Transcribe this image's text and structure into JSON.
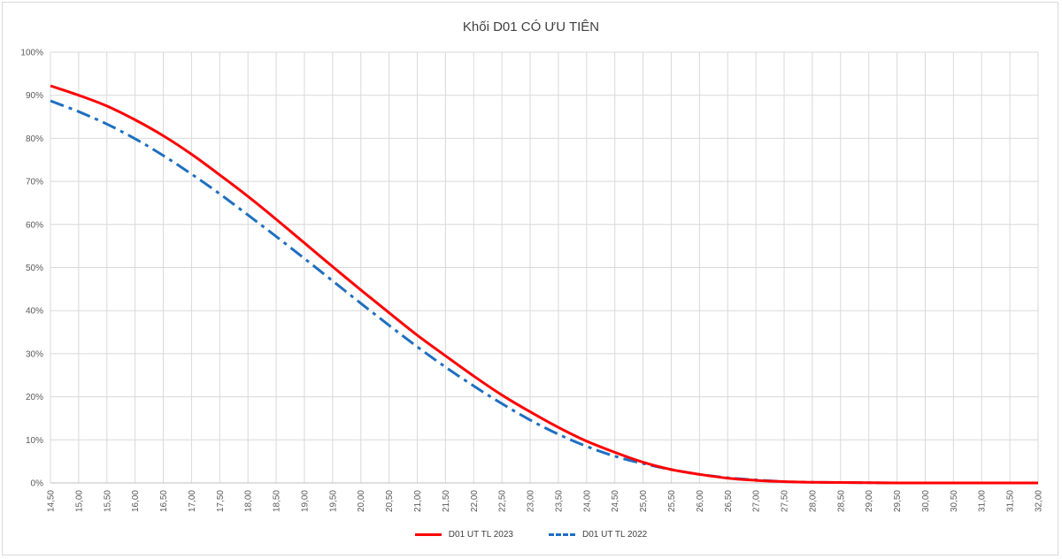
{
  "chart_data": {
    "type": "line",
    "title": "Khối D01 CÓ ƯU TIÊN",
    "xlabel": "",
    "ylabel": "",
    "x": [
      "14,50",
      "15,00",
      "15,50",
      "16,00",
      "16,50",
      "17,00",
      "17,50",
      "18,00",
      "18,50",
      "19,00",
      "19,50",
      "20,00",
      "20,50",
      "21,00",
      "21,50",
      "22,00",
      "22,50",
      "23,00",
      "23,50",
      "24,00",
      "24,50",
      "25,00",
      "25,50",
      "26,00",
      "26,50",
      "27,00",
      "27,50",
      "28,00",
      "28,50",
      "29,00",
      "29,50",
      "30,00",
      "30,50",
      "31,00",
      "31,50",
      "32,00"
    ],
    "ylim": [
      0,
      100
    ],
    "yticks": [
      "0%",
      "10%",
      "20%",
      "30%",
      "40%",
      "50%",
      "60%",
      "70%",
      "80%",
      "90%",
      "100%"
    ],
    "grid": true,
    "legend_position": "bottom",
    "series": [
      {
        "name": "D01 UT TL 2023",
        "color": "#ff0000",
        "style": "solid",
        "values": [
          92.2,
          90.0,
          87.5,
          84.3,
          80.6,
          76.3,
          71.5,
          66.5,
          61.2,
          55.7,
          50.2,
          44.8,
          39.5,
          34.3,
          29.5,
          24.8,
          20.4,
          16.5,
          12.9,
          9.7,
          7.1,
          4.8,
          3.1,
          2.0,
          1.1,
          0.6,
          0.3,
          0.15,
          0.1,
          0.05,
          0.0,
          0.0,
          0.0,
          0.0,
          0.0,
          0.0
        ]
      },
      {
        "name": "D01 UT TL 2022",
        "color": "#1f6fc0",
        "style": "dashdot",
        "values": [
          88.7,
          86.2,
          83.3,
          79.9,
          76.0,
          71.7,
          67.1,
          62.2,
          57.2,
          52.1,
          46.9,
          41.7,
          36.6,
          31.6,
          26.9,
          22.5,
          18.4,
          14.6,
          11.3,
          8.5,
          6.2,
          4.5,
          3.1,
          2.0,
          1.2,
          0.7,
          0.3,
          0.15,
          0.1,
          0.05,
          0.0,
          0.0,
          0.0,
          0.0,
          0.0,
          0.0
        ]
      }
    ]
  }
}
